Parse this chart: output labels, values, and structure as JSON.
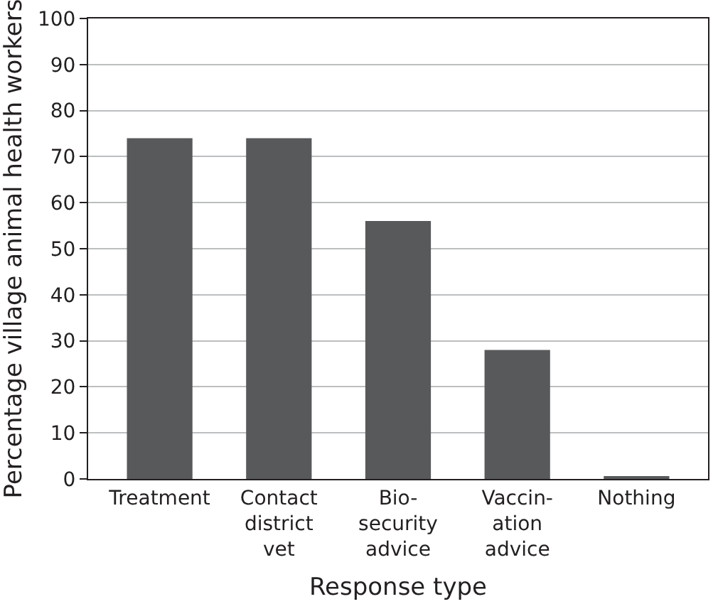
{
  "chart_data": {
    "type": "bar",
    "xlabel": "Response type",
    "ylabel": "Percentage village animal health workers",
    "categories": [
      "Treatment",
      "Contact\ndistrict\nvet",
      "Bio-\nsecurity\nadvice",
      "Vaccin-\nation\nadvice",
      "Nothing"
    ],
    "values": [
      74,
      74,
      56,
      28,
      0.5
    ],
    "color": "#58595b",
    "ylim": [
      0,
      100
    ],
    "yticks": [
      0,
      10,
      20,
      30,
      40,
      50,
      60,
      70,
      80,
      90,
      100
    ],
    "grid": "y"
  }
}
